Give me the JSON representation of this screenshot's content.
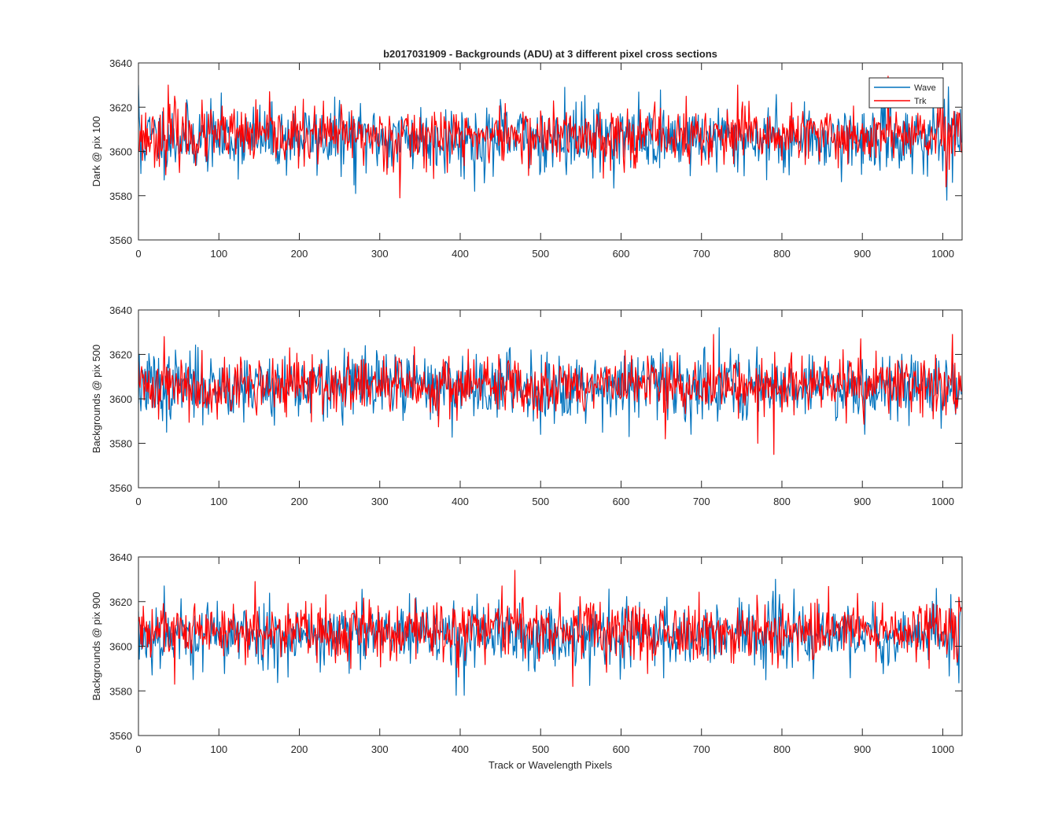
{
  "chart_data": [
    {
      "type": "line",
      "title": "b2017031909 - Backgrounds (ADU) at 3 different pixel cross sections",
      "xlabel": "",
      "ylabel": "Dark @ pix 100",
      "xlim": [
        0,
        1024
      ],
      "ylim": [
        3560,
        3640
      ],
      "xticks": [
        0,
        100,
        200,
        300,
        400,
        500,
        600,
        700,
        800,
        900,
        1000
      ],
      "yticks": [
        3560,
        3580,
        3600,
        3620,
        3640
      ],
      "legend": {
        "position": "top-right",
        "entries": [
          "Wave",
          "Trk"
        ]
      },
      "series": [
        {
          "name": "Wave",
          "color": "#0072BD",
          "mean": 3606,
          "noise": 7.5,
          "n": 1024,
          "seed": 11,
          "spikes": [
            [
              0,
              3630
            ],
            [
              3,
              3590
            ],
            [
              270,
              3581
            ],
            [
              418,
              3582
            ],
            [
              530,
              3629
            ],
            [
              1005,
              3578
            ],
            [
              1012,
              3586
            ],
            [
              935,
              3629
            ]
          ]
        },
        {
          "name": "Trk",
          "color": "#FF0000",
          "mean": 3607,
          "noise": 6.5,
          "n": 1024,
          "seed": 23,
          "spikes": [
            [
              37,
              3630
            ],
            [
              45,
              3625
            ],
            [
              325,
              3579
            ],
            [
              745,
              3630
            ],
            [
              932,
              3634
            ],
            [
              1004,
              3584
            ]
          ]
        }
      ]
    },
    {
      "type": "line",
      "title": "",
      "xlabel": "",
      "ylabel": "Backgrounds @ pix 500",
      "xlim": [
        0,
        1024
      ],
      "ylim": [
        3560,
        3640
      ],
      "xticks": [
        0,
        100,
        200,
        300,
        400,
        500,
        600,
        700,
        800,
        900,
        1000
      ],
      "yticks": [
        3560,
        3580,
        3600,
        3620,
        3640
      ],
      "series": [
        {
          "name": "Wave",
          "color": "#0072BD",
          "mean": 3606,
          "noise": 7.5,
          "n": 1024,
          "seed": 37,
          "spikes": [
            [
              35,
              3585
            ],
            [
              500,
              3584
            ],
            [
              722,
              3632
            ],
            [
              610,
              3583
            ]
          ]
        },
        {
          "name": "Trk",
          "color": "#FF0000",
          "mean": 3606,
          "noise": 6.5,
          "n": 1024,
          "seed": 41,
          "spikes": [
            [
              32,
              3628
            ],
            [
              715,
              3629
            ],
            [
              1012,
              3629
            ],
            [
              790,
              3575
            ],
            [
              770,
              3580
            ],
            [
              655,
              3582
            ],
            [
              898,
              3627
            ]
          ]
        }
      ]
    },
    {
      "type": "line",
      "title": "",
      "xlabel": "Track or Wavelength Pixels",
      "ylabel": "Backgrounds @ pix 900",
      "xlim": [
        0,
        1024
      ],
      "ylim": [
        3560,
        3640
      ],
      "xticks": [
        0,
        100,
        200,
        300,
        400,
        500,
        600,
        700,
        800,
        900,
        1000
      ],
      "yticks": [
        3560,
        3580,
        3600,
        3620,
        3640
      ],
      "series": [
        {
          "name": "Wave",
          "color": "#0072BD",
          "mean": 3605,
          "noise": 7.5,
          "n": 1024,
          "seed": 53,
          "spikes": [
            [
              395,
              3578
            ],
            [
              405,
              3578
            ],
            [
              32,
              3627
            ],
            [
              792,
              3630
            ],
            [
              780,
              3585
            ]
          ]
        },
        {
          "name": "Trk",
          "color": "#FF0000",
          "mean": 3607,
          "noise": 6.5,
          "n": 1024,
          "seed": 61,
          "spikes": [
            [
              468,
              3634
            ],
            [
              452,
              3627
            ],
            [
              45,
              3583
            ],
            [
              145,
              3629
            ],
            [
              540,
              3582
            ],
            [
              1020,
              3622
            ]
          ]
        }
      ]
    }
  ]
}
